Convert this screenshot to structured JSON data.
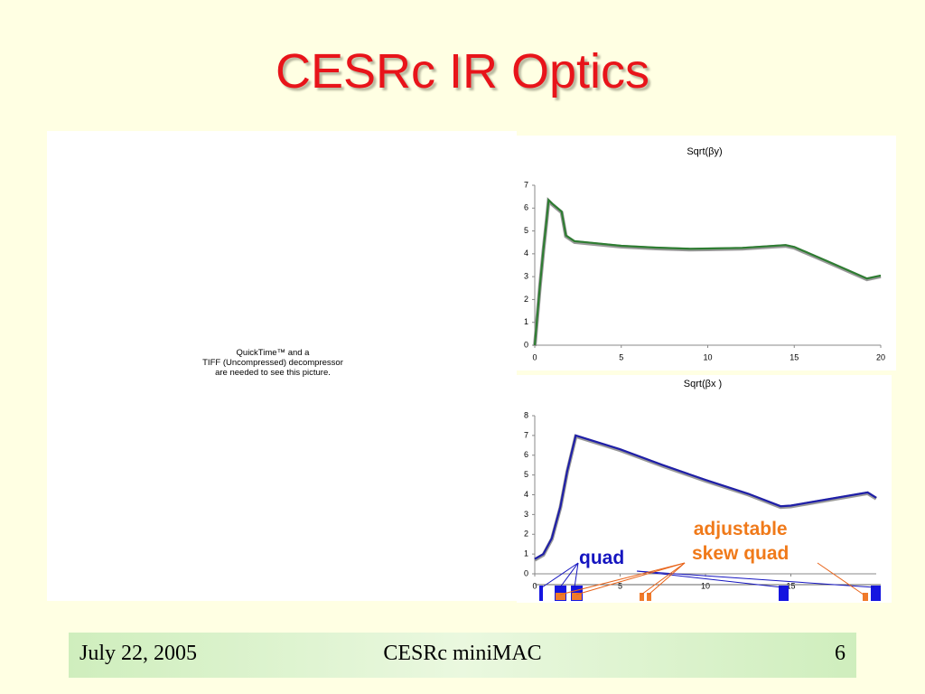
{
  "slide": {
    "title": "CESRc IR Optics",
    "placeholder": [
      "QuickTime™ and a",
      "TIFF (Uncompressed) decompressor",
      "are needed to see this picture."
    ],
    "footer": {
      "date": "July 22, 2005",
      "event": "CESRc miniMAC",
      "page": "6"
    }
  },
  "chart_data": [
    {
      "type": "line",
      "title": "Sqrt(βy)",
      "x": [
        0,
        0.3,
        0.5,
        0.7,
        0.8,
        1.0,
        1.55,
        1.8,
        2.3,
        3,
        5,
        7,
        9,
        10,
        12,
        14,
        14.5,
        15,
        17,
        19.2,
        20
      ],
      "values": [
        0,
        2.6,
        4.2,
        5.6,
        6.35,
        6.2,
        5.85,
        4.8,
        4.55,
        4.5,
        4.35,
        4.27,
        4.22,
        4.23,
        4.26,
        4.36,
        4.38,
        4.3,
        3.65,
        2.92,
        3.05
      ],
      "color": "#2e7d32",
      "xlim": [
        0,
        20
      ],
      "xticks": [
        0,
        5,
        10,
        15,
        20
      ],
      "ylim": [
        0,
        7
      ],
      "yticks": [
        0,
        1,
        2,
        3,
        4,
        5,
        6,
        7
      ]
    },
    {
      "type": "line",
      "title": "Sqrt(βx )",
      "x": [
        0,
        0.5,
        1,
        1.5,
        1.9,
        2.4,
        5,
        7.5,
        10,
        12.5,
        14.4,
        15,
        17,
        19.5,
        20
      ],
      "values": [
        0.75,
        1.0,
        1.8,
        3.4,
        5.2,
        7.0,
        6.3,
        5.5,
        4.75,
        4.05,
        3.42,
        3.45,
        3.75,
        4.12,
        3.85
      ],
      "color": "#1f1fa8",
      "xlim": [
        0,
        20
      ],
      "xticks": [
        0,
        5,
        10,
        15
      ],
      "ylim": [
        0,
        8
      ],
      "yticks": [
        0,
        1,
        2,
        3,
        4,
        5,
        6,
        7,
        8
      ],
      "annotations": [
        "quad",
        "adjustable\nskew quad"
      ]
    }
  ]
}
